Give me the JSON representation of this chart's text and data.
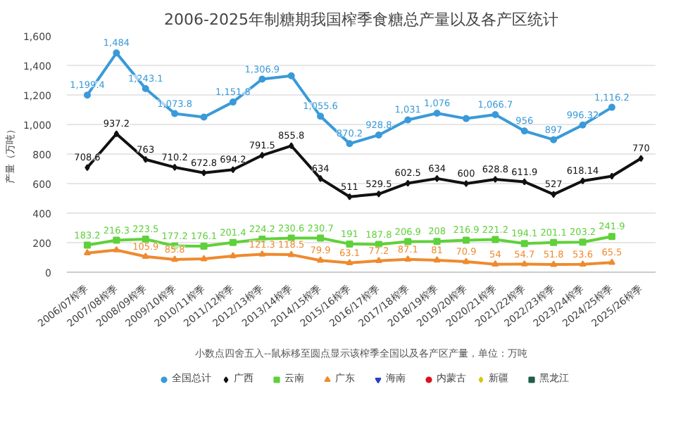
{
  "chart_data": {
    "type": "line",
    "title": "2006-2025年制糖期我国榨季食糖总产量以及各产区统计",
    "ylabel": "产量（万吨）",
    "annotations": [
      "小数点四舍五入--鼠标移至圆点显示该榨季全国以及各产区产量，单位：万吨"
    ],
    "categories": [
      "2006/07榨季",
      "2007/08榨季",
      "2008/09榨季",
      "2009/10榨季",
      "2010/11榨季",
      "2011/12榨季",
      "2012/13榨季",
      "2013/14榨季",
      "2014/15榨季",
      "2015/16榨季",
      "2016/17榨季",
      "2017/18榨季",
      "2018/19榨季",
      "2019/20榨季",
      "2020/21榨季",
      "2021/22榨季",
      "2022/23榨季",
      "2023/24榨季",
      "2024/25榨季",
      "2025/26榨季"
    ],
    "ylim": [
      0,
      1600
    ],
    "yticks": [
      0,
      {
        "value": 200,
        "label": "200"
      },
      {
        "value": 400,
        "label": "400"
      },
      {
        "value": 600,
        "label": "600"
      },
      {
        "value": 800,
        "label": "800"
      },
      {
        "value": 1000,
        "label": "1,000"
      },
      {
        "value": 1200,
        "label": "1,200"
      },
      {
        "value": 1400,
        "label": "1,400"
      },
      {
        "value": 1600,
        "label": "1,600"
      }
    ],
    "grid": "y",
    "legend": "bottom",
    "series": [
      {
        "name": "全国总计",
        "color": "#3a9ad9",
        "marker": "circle",
        "values": [
          1199.4,
          1484,
          1243.1,
          1073.8,
          1050,
          1151.8,
          1306.9,
          1330,
          1055.6,
          870.2,
          928.8,
          1031,
          1076,
          1040,
          1066.7,
          956,
          897,
          996.32,
          1116.2,
          null
        ],
        "value_labels": [
          "1,199.4",
          "1,484",
          "1,243.1",
          "1,073.8",
          null,
          "1,151.8",
          "1,306.9",
          null,
          "1,055.6",
          "870.2",
          "928.8",
          "1,031",
          "1,076",
          null,
          "1,066.7",
          "956",
          "897",
          "996.32",
          "1,116.2",
          null
        ]
      },
      {
        "name": "广西",
        "color": "#111111",
        "marker": "diamond",
        "values": [
          708.6,
          937.2,
          763,
          710.2,
          672.8,
          694.2,
          791.5,
          855.8,
          634,
          511,
          529.5,
          602.5,
          634,
          600,
          628.8,
          611.9,
          527,
          618.14,
          650,
          770
        ],
        "value_labels": [
          "708.6",
          "937.2",
          "763",
          "710.2",
          "672.8",
          "694.2",
          "791.5",
          "855.8",
          "634",
          "511",
          "529.5",
          "602.5",
          "634",
          "600",
          "628.8",
          "611.9",
          "527",
          "618.14",
          null,
          "770"
        ]
      },
      {
        "name": "云南",
        "color": "#5fd13a",
        "marker": "square",
        "values": [
          183.2,
          216.3,
          223.5,
          177.2,
          176.1,
          201.4,
          224.2,
          230.6,
          230.7,
          191,
          187.8,
          206.9,
          208,
          216.9,
          221.2,
          194.1,
          201.1,
          203.2,
          241.9,
          null
        ],
        "value_labels": [
          "183.2",
          "216.3",
          "223.5",
          "177.2",
          "176.1",
          "201.4",
          "224.2",
          "230.6",
          "230.7",
          "191",
          "187.8",
          "206.9",
          "208",
          "216.9",
          "221.2",
          "194.1",
          "201.1",
          "203.2",
          "241.9",
          null
        ]
      },
      {
        "name": "广东",
        "color": "#ef8a2e",
        "marker": "triangle",
        "values": [
          130,
          150,
          105.9,
          85.8,
          90,
          110,
          121.3,
          118.5,
          79.9,
          63.1,
          77.2,
          87.1,
          81,
          70.9,
          54,
          54.7,
          51.8,
          53.6,
          65.5,
          null
        ],
        "value_labels": [
          null,
          null,
          "105.9",
          "85.8",
          null,
          null,
          "121.3",
          "118.5",
          "79.9",
          "63.1",
          "77.2",
          "87.1",
          "81",
          "70.9",
          "54",
          "54.7",
          "51.8",
          "53.6",
          "65.5",
          null
        ]
      },
      {
        "name": "海南",
        "color": "#2a3fc4",
        "marker": "inverted_triangle",
        "values": [
          null,
          null,
          null,
          null,
          null,
          null,
          null,
          null,
          null,
          null,
          null,
          null,
          null,
          null,
          null,
          null,
          null,
          null,
          null,
          null
        ]
      },
      {
        "name": "内蒙古",
        "color": "#e0101e",
        "marker": "circle",
        "values": [
          null,
          null,
          null,
          null,
          null,
          null,
          null,
          null,
          null,
          null,
          null,
          null,
          null,
          null,
          null,
          null,
          null,
          null,
          null,
          null
        ]
      },
      {
        "name": "新疆",
        "color": "#d8c410",
        "marker": "diamond",
        "values": [
          null,
          null,
          null,
          null,
          null,
          null,
          null,
          null,
          null,
          null,
          null,
          null,
          null,
          null,
          null,
          null,
          null,
          null,
          null,
          null
        ]
      },
      {
        "name": "黑龙江",
        "color": "#1e5e4a",
        "marker": "square",
        "values": [
          null,
          null,
          null,
          null,
          null,
          null,
          null,
          null,
          null,
          null,
          null,
          null,
          null,
          null,
          null,
          null,
          null,
          null,
          null,
          null
        ]
      }
    ]
  }
}
